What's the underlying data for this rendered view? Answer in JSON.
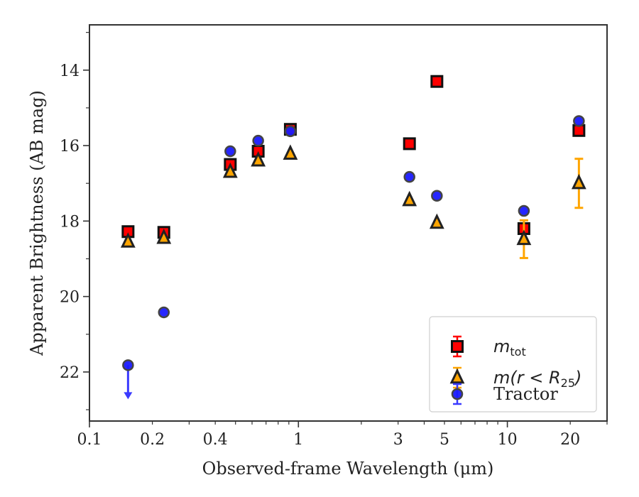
{
  "chart_data": {
    "type": "scatter",
    "xlabel": "Observed-frame Wavelength (μm)",
    "ylabel": "Apparent Brightness (AB mag)",
    "xscale": "log",
    "xlim": [
      0.1,
      30
    ],
    "ylim": [
      23.3,
      12.8
    ],
    "y_inverted": true,
    "x_ticks": [
      0.1,
      0.2,
      0.4,
      1,
      3,
      5,
      10,
      20
    ],
    "x_tick_labels": [
      "0.1",
      "0.2",
      "0.4",
      "1",
      "3",
      "5",
      "10",
      "20"
    ],
    "y_ticks": [
      14,
      16,
      18,
      20,
      22
    ],
    "y_tick_labels": [
      "14",
      "16",
      "18",
      "20",
      "22"
    ],
    "legend_position": "lower-right",
    "series": [
      {
        "name_italic": "m",
        "name_sub": "tot",
        "marker": "square",
        "color": "#ff0000",
        "edge_color": "#111111",
        "errorbar_color": "#ff0000",
        "points": [
          {
            "x": 0.153,
            "y": 18.28
          },
          {
            "x": 0.227,
            "y": 18.3
          },
          {
            "x": 0.472,
            "y": 16.5
          },
          {
            "x": 0.642,
            "y": 16.15
          },
          {
            "x": 0.915,
            "y": 15.57
          },
          {
            "x": 3.4,
            "y": 15.95
          },
          {
            "x": 4.6,
            "y": 14.3
          },
          {
            "x": 12.0,
            "y": 18.2
          },
          {
            "x": 22.0,
            "y": 15.6
          }
        ]
      },
      {
        "name_prefix": "m(r < R",
        "name_sub": "25",
        "name_suffix": ")",
        "marker": "triangle",
        "color": "#ffa500",
        "edge_color": "#222222",
        "errorbar_color": "#ffa500",
        "points": [
          {
            "x": 0.153,
            "y": 18.55
          },
          {
            "x": 0.227,
            "y": 18.45
          },
          {
            "x": 0.472,
            "y": 16.7
          },
          {
            "x": 0.642,
            "y": 16.4
          },
          {
            "x": 0.915,
            "y": 16.22
          },
          {
            "x": 3.4,
            "y": 17.45
          },
          {
            "x": 4.6,
            "y": 18.05
          },
          {
            "x": 12.0,
            "y": 18.48,
            "err": 0.5
          },
          {
            "x": 22.0,
            "y": 17.0,
            "err": 0.65
          }
        ]
      },
      {
        "name": "Tractor",
        "marker": "circle",
        "color": "#1a1aff",
        "edge_color": "#444444",
        "errorbar_color": "#3a3aff",
        "points": [
          {
            "x": 0.153,
            "y": 21.82,
            "upper_limit": true
          },
          {
            "x": 0.227,
            "y": 20.42
          },
          {
            "x": 0.472,
            "y": 16.15
          },
          {
            "x": 0.642,
            "y": 15.87
          },
          {
            "x": 0.915,
            "y": 15.62
          },
          {
            "x": 3.4,
            "y": 16.83
          },
          {
            "x": 4.6,
            "y": 17.33
          },
          {
            "x": 12.0,
            "y": 17.73
          },
          {
            "x": 22.0,
            "y": 15.35
          }
        ]
      }
    ]
  }
}
